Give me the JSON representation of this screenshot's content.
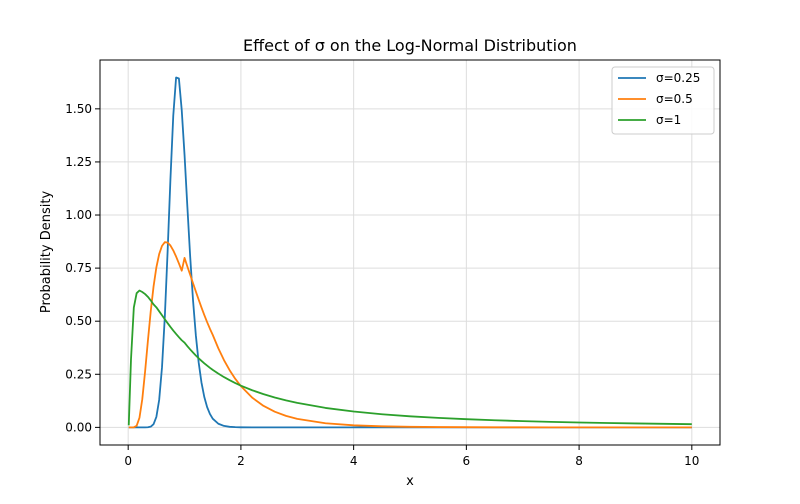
{
  "chart_data": {
    "type": "line",
    "title": "Effect of σ on the Log-Normal Distribution",
    "xlabel": "x",
    "ylabel": "Probability Density",
    "xlim": [
      -0.5,
      10.5
    ],
    "ylim": [
      -0.083,
      1.73
    ],
    "x_ticks": [
      0,
      2,
      4,
      6,
      8,
      10
    ],
    "x_tick_labels": [
      "0",
      "2",
      "4",
      "6",
      "8",
      "10"
    ],
    "y_ticks": [
      0.0,
      0.25,
      0.5,
      0.75,
      1.0,
      1.25,
      1.5
    ],
    "y_tick_labels": [
      "0.00",
      "0.25",
      "0.50",
      "0.75",
      "1.00",
      "1.25",
      "1.50"
    ],
    "grid": true,
    "legend_position": "top-right",
    "x": [
      0.01,
      0.05,
      0.1,
      0.15,
      0.2,
      0.25,
      0.3,
      0.35,
      0.4,
      0.45,
      0.5,
      0.55,
      0.6,
      0.65,
      0.7,
      0.75,
      0.8,
      0.85,
      0.9,
      0.95,
      1.0,
      1.05,
      1.1,
      1.15,
      1.2,
      1.25,
      1.3,
      1.35,
      1.4,
      1.45,
      1.5,
      1.6,
      1.7,
      1.8,
      1.9,
      2.0,
      2.2,
      2.4,
      2.6,
      2.8,
      3.0,
      3.5,
      4.0,
      4.5,
      5.0,
      5.5,
      6.0,
      6.5,
      7.0,
      7.5,
      8.0,
      8.5,
      9.0,
      9.5,
      10.0
    ],
    "series": [
      {
        "name": "σ=0.25",
        "color": "#1f77b4",
        "values": [
          0,
          0,
          0,
          0,
          0,
          0,
          0.0001,
          0.0005,
          0.0033,
          0.0148,
          0.0492,
          0.1296,
          0.2828,
          0.5212,
          0.8317,
          1.1704,
          1.4682,
          1.6475,
          1.6428,
          1.4939,
          1.2825,
          1.0393,
          0.8043,
          0.6002,
          0.4345,
          0.3066,
          0.2118,
          0.1437,
          0.096,
          0.0633,
          0.0411,
          0.0171,
          0.0069,
          0.0027,
          0.001,
          0.0004,
          0.0001,
          0,
          0,
          0,
          0,
          0,
          0,
          0,
          0,
          0,
          0,
          0,
          0,
          0,
          0,
          0,
          0,
          0,
          0
        ]
      },
      {
        "name": "σ=0.5",
        "color": "#ff7f0e",
        "values": [
          0,
          0,
          0.0001,
          0.0074,
          0.0449,
          0.1324,
          0.2627,
          0.4083,
          0.5465,
          0.6634,
          0.7533,
          0.8163,
          0.8547,
          0.872,
          0.8703,
          0.8563,
          0.8333,
          0.8044,
          0.772,
          0.7377,
          0.7979,
          0.7575,
          0.7188,
          0.6793,
          0.6401,
          0.6017,
          0.5646,
          0.5293,
          0.496,
          0.4647,
          0.4357,
          0.372,
          0.3166,
          0.2691,
          0.2286,
          0.1941,
          0.14,
          0.1014,
          0.0739,
          0.0542,
          0.0399,
          0.0194,
          0.0097,
          0.005,
          0.0026,
          0.0014,
          0.0008,
          0.0004,
          0.0002,
          0.0001,
          0.0001,
          0,
          0,
          0,
          0
        ]
      },
      {
        "name": "σ=1",
        "color": "#2ca02c",
        "values": [
          0.0097,
          0.3207,
          0.564,
          0.6319,
          0.6446,
          0.6375,
          0.6278,
          0.6146,
          0.598,
          0.5794,
          0.5653,
          0.5466,
          0.5278,
          0.509,
          0.4906,
          0.4729,
          0.456,
          0.4399,
          0.4248,
          0.4103,
          0.3989,
          0.3825,
          0.367,
          0.3524,
          0.3386,
          0.3256,
          0.3134,
          0.3018,
          0.2909,
          0.2806,
          0.2709,
          0.253,
          0.2368,
          0.2221,
          0.2087,
          0.1964,
          0.1748,
          0.1564,
          0.1407,
          0.1272,
          0.1155,
          0.0916,
          0.0747,
          0.062,
          0.0522,
          0.0446,
          0.0385,
          0.0335,
          0.0294,
          0.026,
          0.0231,
          0.0206,
          0.0185,
          0.0167,
          0.0151
        ]
      }
    ]
  }
}
